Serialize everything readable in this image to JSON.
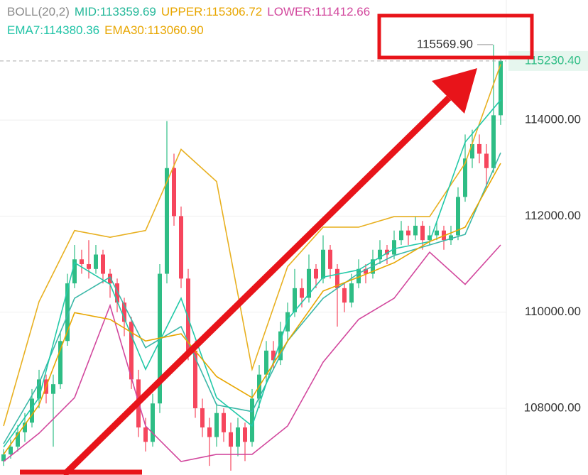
{
  "chart_data": {
    "type": "candlestick",
    "legend_rows": [
      [
        {
          "text": "BOLL(20,2)",
          "color": "#8a8a8a"
        },
        {
          "text": "MID:113359.69",
          "color": "#25b89a"
        },
        {
          "text": "UPPER:115306.72",
          "color": "#e8a600"
        },
        {
          "text": "LOWER:111412.66",
          "color": "#d2479d"
        }
      ],
      [
        {
          "text": "EMA7:114380.36",
          "color": "#1fc3a6"
        },
        {
          "text": "EMA30:113060.90",
          "color": "#e8a600"
        }
      ]
    ],
    "ylim": [
      106610,
      116500
    ],
    "yticks": [
      {
        "value": 108000,
        "label": "108000.00"
      },
      {
        "value": 110000,
        "label": "110000.00"
      },
      {
        "value": 112000,
        "label": "112000.00"
      },
      {
        "value": 114000,
        "label": "114000.00"
      }
    ],
    "grid": true,
    "up_color": "#2ebd85",
    "down_color": "#f6465d",
    "last_price": {
      "value": 115230.4,
      "label": "115230.40"
    },
    "high_marker": {
      "value": 115569.9,
      "label": "115569.90"
    },
    "candles": [
      [
        106900,
        107150,
        106800,
        107040
      ],
      [
        107040,
        107350,
        106950,
        107200
      ],
      [
        107200,
        107650,
        107100,
        107500
      ],
      [
        107500,
        107900,
        107300,
        107700
      ],
      [
        107700,
        108400,
        107600,
        108200
      ],
      [
        108200,
        108800,
        108000,
        108600
      ],
      [
        108600,
        108700,
        108100,
        108300
      ],
      [
        108300,
        108700,
        107200,
        108500
      ],
      [
        108500,
        109600,
        108400,
        109400
      ],
      [
        109400,
        110800,
        109300,
        110600
      ],
      [
        110600,
        111400,
        110500,
        111100
      ],
      [
        111100,
        111300,
        110800,
        111000
      ],
      [
        111000,
        111500,
        110700,
        110900
      ],
      [
        110900,
        111400,
        110800,
        111200
      ],
      [
        111200,
        111300,
        110600,
        110800
      ],
      [
        110800,
        110900,
        110300,
        110600
      ],
      [
        110600,
        110700,
        110000,
        110200
      ],
      [
        110200,
        110300,
        109500,
        109800
      ],
      [
        109800,
        109900,
        108400,
        108600
      ],
      [
        108600,
        108800,
        107400,
        107600
      ],
      [
        107600,
        107800,
        107100,
        107300
      ],
      [
        107300,
        108300,
        107200,
        108100
      ],
      [
        108100,
        111000,
        107900,
        110800
      ],
      [
        110800,
        113980,
        110600,
        113000
      ],
      [
        113000,
        113300,
        111800,
        112000
      ],
      [
        112000,
        112200,
        110500,
        110700
      ],
      [
        110700,
        110900,
        109000,
        109200
      ],
      [
        109200,
        109400,
        107800,
        108000
      ],
      [
        108000,
        108200,
        107400,
        107600
      ],
      [
        107600,
        107800,
        106800,
        107400
      ],
      [
        107400,
        108100,
        107200,
        107900
      ],
      [
        107900,
        108000,
        107300,
        107500
      ],
      [
        107500,
        107700,
        106700,
        107200
      ],
      [
        107200,
        107800,
        107000,
        107600
      ],
      [
        107600,
        107700,
        106900,
        107300
      ],
      [
        107300,
        108400,
        107200,
        108200
      ],
      [
        108200,
        108900,
        108000,
        108700
      ],
      [
        108700,
        109400,
        108500,
        109200
      ],
      [
        109200,
        109400,
        108800,
        109000
      ],
      [
        109000,
        109800,
        108900,
        109600
      ],
      [
        109600,
        110200,
        109400,
        110000
      ],
      [
        110000,
        110900,
        109900,
        110500
      ],
      [
        110500,
        110700,
        110100,
        110300
      ],
      [
        110300,
        111200,
        110200,
        110900
      ],
      [
        110900,
        111000,
        110500,
        110700
      ],
      [
        110700,
        111600,
        110600,
        111300
      ],
      [
        111300,
        111400,
        110700,
        110900
      ],
      [
        110900,
        111000,
        109700,
        110500
      ],
      [
        110500,
        110600,
        110000,
        110200
      ],
      [
        110200,
        110800,
        110100,
        110600
      ],
      [
        110600,
        111100,
        110500,
        110900
      ],
      [
        110900,
        111000,
        110600,
        110800
      ],
      [
        110800,
        111300,
        110700,
        111100
      ],
      [
        111100,
        111500,
        111000,
        111300
      ],
      [
        111300,
        111400,
        111000,
        111200
      ],
      [
        111200,
        111700,
        111100,
        111500
      ],
      [
        111500,
        111900,
        111400,
        111700
      ],
      [
        111700,
        111800,
        111400,
        111600
      ],
      [
        111600,
        112000,
        111500,
        111800
      ],
      [
        111800,
        111900,
        111300,
        111500
      ],
      [
        111500,
        111800,
        111400,
        111600
      ],
      [
        111600,
        111900,
        111500,
        111700
      ],
      [
        111700,
        111800,
        111300,
        111500
      ],
      [
        111500,
        111800,
        111400,
        111600
      ],
      [
        111600,
        112600,
        111500,
        112400
      ],
      [
        112400,
        113700,
        112300,
        113200
      ],
      [
        113200,
        113800,
        113000,
        113500
      ],
      [
        113500,
        113700,
        113100,
        113300
      ],
      [
        113300,
        113500,
        112600,
        113000
      ],
      [
        113000,
        115569.9,
        112900,
        114100
      ],
      [
        114100,
        115300,
        113900,
        115230.4
      ]
    ],
    "overlays": {
      "x": [
        0,
        5,
        10,
        15,
        20,
        25,
        30,
        35,
        40,
        45,
        50,
        55,
        60,
        65,
        70
      ],
      "series": [
        {
          "color": "#e8b020",
          "values": [
            107630,
            110220,
            111700,
            111560,
            111700,
            113390,
            112720,
            108810,
            110950,
            111770,
            111770,
            111990,
            111990,
            113100,
            115160
          ]
        },
        {
          "color": "#d2479d",
          "values": [
            106890,
            107480,
            108220,
            110140,
            107630,
            106890,
            107040,
            107040,
            107630,
            108960,
            109850,
            110290,
            111250,
            110580,
            111400
          ]
        },
        {
          "color": "#3bb8a8",
          "values": [
            107260,
            108520,
            110290,
            110730,
            109260,
            109700,
            108070,
            107930,
            109400,
            110290,
            110810,
            111180,
            111400,
            111620,
            113320
          ]
        },
        {
          "color": "#22c9a8",
          "values": [
            107190,
            108220,
            111030,
            110580,
            108810,
            110290,
            108220,
            107630,
            109850,
            110730,
            110880,
            111320,
            111470,
            113540,
            114420
          ]
        },
        {
          "color": "#e8a600",
          "values": [
            107040,
            108070,
            109990,
            109850,
            109400,
            109550,
            108660,
            108220,
            109400,
            110440,
            110730,
            111030,
            111470,
            111770,
            113100
          ]
        }
      ]
    }
  }
}
